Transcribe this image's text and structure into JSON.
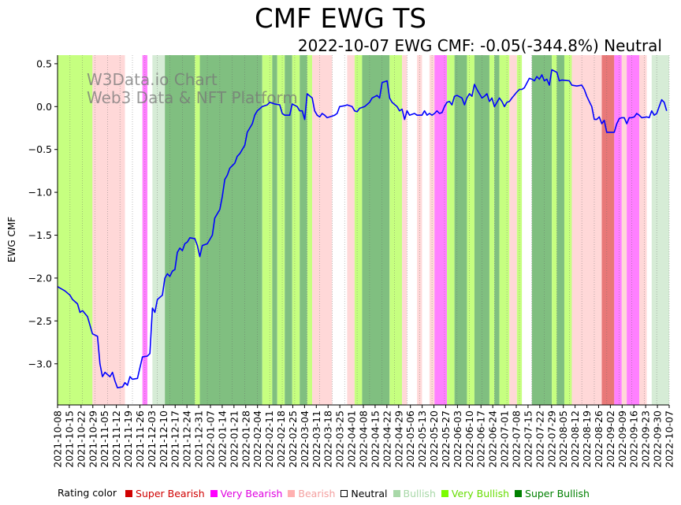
{
  "chart_data": {
    "type": "line",
    "title": "CMF EWG TS",
    "subtitle": "2022-10-07 EWG CMF: -0.05(-344.8%) Neutral",
    "ylabel": "EWG CMF",
    "xlabel": "",
    "ylim": [
      -3.48,
      0.6
    ],
    "yticks": [
      0.5,
      0.0,
      -0.5,
      -1.0,
      -1.5,
      -2.0,
      -2.5,
      -3.0
    ],
    "start_date": "2021-10-08",
    "end_date": "2022-10-07",
    "x_tick_labels": [
      "2021-10-08",
      "2021-10-15",
      "2021-10-22",
      "2021-10-29",
      "2021-11-05",
      "2021-11-12",
      "2021-11-19",
      "2021-11-26",
      "2021-12-03",
      "2021-12-10",
      "2021-12-17",
      "2021-12-24",
      "2021-12-31",
      "2022-01-07",
      "2022-01-14",
      "2022-01-21",
      "2022-01-28",
      "2022-02-04",
      "2022-02-11",
      "2022-02-18",
      "2022-02-25",
      "2022-03-04",
      "2022-03-11",
      "2022-03-18",
      "2022-03-25",
      "2022-04-01",
      "2022-04-08",
      "2022-04-15",
      "2022-04-22",
      "2022-04-29",
      "2022-05-06",
      "2022-05-13",
      "2022-05-20",
      "2022-05-27",
      "2022-06-03",
      "2022-06-10",
      "2022-06-17",
      "2022-06-24",
      "2022-07-01",
      "2022-07-08",
      "2022-07-15",
      "2022-07-22",
      "2022-07-29",
      "2022-08-05",
      "2022-08-12",
      "2022-08-19",
      "2022-08-26",
      "2022-09-02",
      "2022-09-09",
      "2022-09-16",
      "2022-09-23",
      "2022-09-30",
      "2022-10-07"
    ],
    "series": [
      {
        "name": "EWG CMF",
        "color": "#0000ff",
        "points": [
          [
            0,
            -2.1
          ],
          [
            3,
            -2.15
          ],
          [
            5,
            -2.2
          ],
          [
            6,
            -2.25
          ],
          [
            8,
            -2.3
          ],
          [
            9,
            -2.4
          ],
          [
            10,
            -2.38
          ],
          [
            12,
            -2.45
          ],
          [
            14,
            -2.65
          ],
          [
            16,
            -2.68
          ],
          [
            17,
            -3.0
          ],
          [
            18,
            -3.15
          ],
          [
            19,
            -3.1
          ],
          [
            21,
            -3.15
          ],
          [
            22,
            -3.1
          ],
          [
            23,
            -3.2
          ],
          [
            24,
            -3.28
          ],
          [
            26,
            -3.27
          ],
          [
            27,
            -3.22
          ],
          [
            28,
            -3.25
          ],
          [
            29,
            -3.15
          ],
          [
            30,
            -3.18
          ],
          [
            32,
            -3.17
          ],
          [
            34,
            -2.92
          ],
          [
            36,
            -2.91
          ],
          [
            37,
            -2.88
          ],
          [
            38,
            -2.35
          ],
          [
            39,
            -2.4
          ],
          [
            40,
            -2.25
          ],
          [
            42,
            -2.2
          ],
          [
            43,
            -2.0
          ],
          [
            44,
            -1.95
          ],
          [
            45,
            -1.98
          ],
          [
            46,
            -1.92
          ],
          [
            47,
            -1.9
          ],
          [
            48,
            -1.7
          ],
          [
            49,
            -1.65
          ],
          [
            50,
            -1.68
          ],
          [
            51,
            -1.6
          ],
          [
            52,
            -1.58
          ],
          [
            53,
            -1.53
          ],
          [
            55,
            -1.54
          ],
          [
            56,
            -1.62
          ],
          [
            57,
            -1.75
          ],
          [
            58,
            -1.62
          ],
          [
            60,
            -1.6
          ],
          [
            61,
            -1.55
          ],
          [
            62,
            -1.5
          ],
          [
            63,
            -1.3
          ],
          [
            65,
            -1.2
          ],
          [
            66,
            -1.05
          ],
          [
            67,
            -0.85
          ],
          [
            68,
            -0.8
          ],
          [
            69,
            -0.72
          ],
          [
            71,
            -0.66
          ],
          [
            72,
            -0.58
          ],
          [
            73,
            -0.55
          ],
          [
            75,
            -0.45
          ],
          [
            76,
            -0.3
          ],
          [
            78,
            -0.2
          ],
          [
            79,
            -0.1
          ],
          [
            80,
            -0.05
          ],
          [
            82,
            0.0
          ],
          [
            84,
            0.02
          ],
          [
            85,
            0.05
          ],
          [
            87,
            0.03
          ],
          [
            89,
            0.02
          ],
          [
            90,
            -0.08
          ],
          [
            91,
            -0.1
          ],
          [
            93,
            -0.1
          ],
          [
            94,
            0.03
          ],
          [
            96,
            0.0
          ],
          [
            97,
            -0.05
          ],
          [
            98,
            -0.05
          ],
          [
            99,
            -0.15
          ],
          [
            100,
            0.15
          ],
          [
            102,
            0.1
          ],
          [
            103,
            -0.05
          ],
          [
            104,
            -0.1
          ],
          [
            105,
            -0.12
          ],
          [
            106,
            -0.08
          ],
          [
            107,
            -0.1
          ],
          [
            108,
            -0.13
          ],
          [
            109,
            -0.12
          ],
          [
            111,
            -0.1
          ],
          [
            112,
            -0.08
          ],
          [
            113,
            0.0
          ],
          [
            115,
            0.01
          ],
          [
            116,
            0.02
          ],
          [
            118,
            0.0
          ],
          [
            119,
            -0.05
          ],
          [
            120,
            -0.06
          ],
          [
            121,
            -0.02
          ],
          [
            123,
            0.0
          ],
          [
            125,
            0.05
          ],
          [
            126,
            0.1
          ],
          [
            128,
            0.13
          ],
          [
            129,
            0.1
          ],
          [
            130,
            0.28
          ],
          [
            132,
            0.3
          ],
          [
            133,
            0.1
          ],
          [
            134,
            0.05
          ],
          [
            136,
            0.0
          ],
          [
            137,
            -0.05
          ],
          [
            138,
            -0.03
          ],
          [
            139,
            -0.15
          ],
          [
            140,
            -0.05
          ],
          [
            141,
            -0.1
          ],
          [
            143,
            -0.08
          ],
          [
            144,
            -0.1
          ],
          [
            146,
            -0.1
          ],
          [
            147,
            -0.05
          ],
          [
            148,
            -0.1
          ],
          [
            149,
            -0.08
          ],
          [
            150,
            -0.1
          ],
          [
            151,
            -0.08
          ],
          [
            152,
            -0.05
          ],
          [
            153,
            -0.08
          ],
          [
            154,
            -0.07
          ],
          [
            155,
            0.0
          ],
          [
            156,
            0.05
          ],
          [
            157,
            0.06
          ],
          [
            158,
            0.02
          ],
          [
            159,
            0.12
          ],
          [
            160,
            0.13
          ],
          [
            162,
            0.1
          ],
          [
            163,
            0.02
          ],
          [
            164,
            0.1
          ],
          [
            165,
            0.15
          ],
          [
            166,
            0.12
          ],
          [
            167,
            0.26
          ],
          [
            168,
            0.2
          ],
          [
            170,
            0.1
          ],
          [
            171,
            0.12
          ],
          [
            172,
            0.15
          ],
          [
            173,
            0.06
          ],
          [
            174,
            0.1
          ],
          [
            175,
            0.0
          ],
          [
            176,
            0.05
          ],
          [
            177,
            0.1
          ],
          [
            178,
            0.06
          ],
          [
            179,
            0.0
          ],
          [
            180,
            0.05
          ],
          [
            181,
            0.06
          ],
          [
            182,
            0.1
          ],
          [
            184,
            0.17
          ],
          [
            185,
            0.2
          ],
          [
            186,
            0.2
          ],
          [
            187,
            0.22
          ],
          [
            189,
            0.33
          ],
          [
            190,
            0.32
          ],
          [
            191,
            0.3
          ],
          [
            192,
            0.35
          ],
          [
            193,
            0.32
          ],
          [
            194,
            0.37
          ],
          [
            195,
            0.3
          ],
          [
            196,
            0.32
          ],
          [
            197,
            0.25
          ],
          [
            198,
            0.43
          ],
          [
            200,
            0.4
          ],
          [
            201,
            0.3
          ],
          [
            202,
            0.31
          ],
          [
            205,
            0.3
          ],
          [
            206,
            0.25
          ],
          [
            208,
            0.24
          ],
          [
            210,
            0.25
          ],
          [
            211,
            0.2
          ],
          [
            212,
            0.12
          ],
          [
            213,
            0.06
          ],
          [
            214,
            0.0
          ],
          [
            215,
            -0.15
          ],
          [
            216,
            -0.15
          ],
          [
            217,
            -0.12
          ],
          [
            218,
            -0.2
          ],
          [
            219,
            -0.16
          ],
          [
            220,
            -0.3
          ],
          [
            223,
            -0.3
          ],
          [
            224,
            -0.2
          ],
          [
            225,
            -0.14
          ],
          [
            226,
            -0.13
          ],
          [
            227,
            -0.13
          ],
          [
            228,
            -0.2
          ],
          [
            229,
            -0.13
          ],
          [
            230,
            -0.13
          ],
          [
            231,
            -0.12
          ],
          [
            232,
            -0.08
          ],
          [
            233,
            -0.1
          ],
          [
            234,
            -0.13
          ],
          [
            236,
            -0.12
          ],
          [
            237,
            -0.13
          ],
          [
            238,
            -0.05
          ],
          [
            239,
            -0.1
          ],
          [
            240,
            -0.08
          ],
          [
            241,
            0.0
          ],
          [
            242,
            0.08
          ],
          [
            243,
            0.05
          ],
          [
            244,
            -0.05
          ]
        ]
      }
    ],
    "rating_bands": [
      {
        "from": 0,
        "to": 14,
        "rating": "very_bullish"
      },
      {
        "from": 14,
        "to": 27,
        "rating": "bearish"
      },
      {
        "from": 34,
        "to": 36,
        "rating": "very_bearish"
      },
      {
        "from": 38,
        "to": 43,
        "rating": "bullish"
      },
      {
        "from": 43,
        "to": 55,
        "rating": "super_bullish"
      },
      {
        "from": 55,
        "to": 57,
        "rating": "very_bullish"
      },
      {
        "from": 57,
        "to": 82,
        "rating": "super_bullish"
      },
      {
        "from": 82,
        "to": 86,
        "rating": "very_bullish"
      },
      {
        "from": 86,
        "to": 88,
        "rating": "super_bullish"
      },
      {
        "from": 88,
        "to": 91,
        "rating": "very_bullish"
      },
      {
        "from": 91,
        "to": 94,
        "rating": "super_bullish"
      },
      {
        "from": 94,
        "to": 97,
        "rating": "very_bullish"
      },
      {
        "from": 97,
        "to": 100,
        "rating": "super_bullish"
      },
      {
        "from": 100,
        "to": 102,
        "rating": "very_bullish"
      },
      {
        "from": 102,
        "to": 110,
        "rating": "bearish"
      },
      {
        "from": 116,
        "to": 119,
        "rating": "bearish"
      },
      {
        "from": 119,
        "to": 122,
        "rating": "very_bullish"
      },
      {
        "from": 122,
        "to": 133,
        "rating": "super_bullish"
      },
      {
        "from": 133,
        "to": 138,
        "rating": "very_bullish"
      },
      {
        "from": 138,
        "to": 140,
        "rating": "bearish"
      },
      {
        "from": 144,
        "to": 146,
        "rating": "bearish"
      },
      {
        "from": 149,
        "to": 151,
        "rating": "bearish"
      },
      {
        "from": 151,
        "to": 156,
        "rating": "very_bearish"
      },
      {
        "from": 156,
        "to": 159,
        "rating": "very_bullish"
      },
      {
        "from": 159,
        "to": 164,
        "rating": "super_bullish"
      },
      {
        "from": 164,
        "to": 167,
        "rating": "very_bullish"
      },
      {
        "from": 167,
        "to": 173,
        "rating": "super_bullish"
      },
      {
        "from": 173,
        "to": 175,
        "rating": "very_bullish"
      },
      {
        "from": 175,
        "to": 177,
        "rating": "super_bullish"
      },
      {
        "from": 177,
        "to": 181,
        "rating": "very_bullish"
      },
      {
        "from": 181,
        "to": 184,
        "rating": "bearish"
      },
      {
        "from": 184,
        "to": 186,
        "rating": "very_bullish"
      },
      {
        "from": 190,
        "to": 198,
        "rating": "super_bullish"
      },
      {
        "from": 198,
        "to": 200,
        "rating": "very_bullish"
      },
      {
        "from": 200,
        "to": 203,
        "rating": "super_bullish"
      },
      {
        "from": 203,
        "to": 206,
        "rating": "very_bullish"
      },
      {
        "from": 206,
        "to": 218,
        "rating": "bearish"
      },
      {
        "from": 218,
        "to": 223,
        "rating": "super_bearish"
      },
      {
        "from": 223,
        "to": 226,
        "rating": "very_bearish"
      },
      {
        "from": 226,
        "to": 228,
        "rating": "bearish"
      },
      {
        "from": 228,
        "to": 233,
        "rating": "very_bearish"
      },
      {
        "from": 233,
        "to": 236,
        "rating": "bearish"
      },
      {
        "from": 238,
        "to": 245,
        "rating": "bullish"
      }
    ],
    "legend_placement": "bottom",
    "grid": false
  },
  "watermark": {
    "line1": "W3Data.io Chart",
    "line2": "Web3 Data & NFT Platform"
  },
  "legend": {
    "title": "Rating color",
    "items": [
      {
        "key": "super_bearish",
        "label": "Super Bearish",
        "color": "#d00000",
        "text_color": "#d00000"
      },
      {
        "key": "very_bearish",
        "label": "Very Bearish",
        "color": "#ff00ff",
        "text_color": "#e000e0"
      },
      {
        "key": "bearish",
        "label": "Bearish",
        "color": "#ffb0b0",
        "text_color": "#f4a0a0"
      },
      {
        "key": "neutral",
        "label": "Neutral",
        "color": "#ffffff",
        "text_color": "#000000"
      },
      {
        "key": "bullish",
        "label": "Bullish",
        "color": "#a8d8a8",
        "text_color": "#a8d8a8"
      },
      {
        "key": "very_bullish",
        "label": "Very Bullish",
        "color": "#7cfc00",
        "text_color": "#66dd00"
      },
      {
        "key": "super_bullish",
        "label": "Super Bullish",
        "color": "#008000",
        "text_color": "#008000"
      }
    ]
  },
  "band_fill": {
    "super_bearish": "#e87878",
    "very_bearish": "#ff80ff",
    "bearish": "#ffd8d8",
    "neutral": "#ffffff",
    "bullish": "#d6ecd6",
    "very_bullish": "#c6ff80",
    "super_bullish": "#80bf80"
  }
}
